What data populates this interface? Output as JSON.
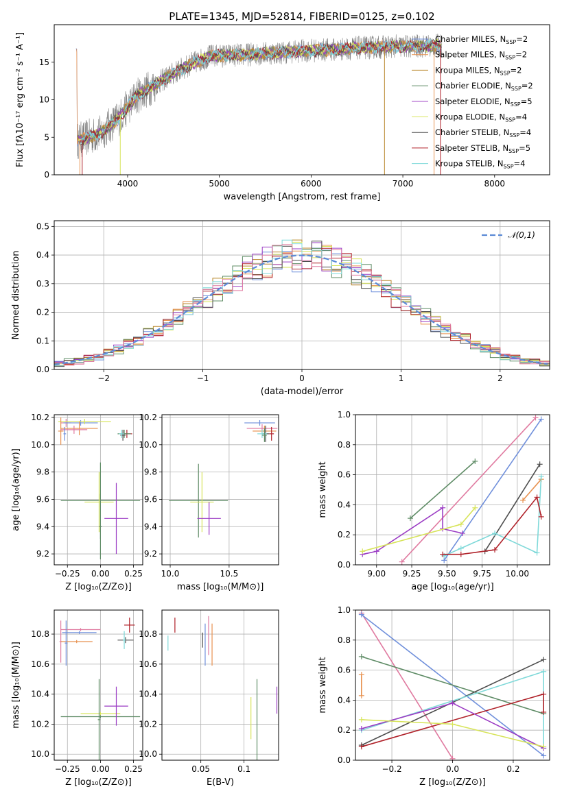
{
  "figure_title": "PLATE=1345, MJD=52814, FIBERID=0125, z=0.102",
  "chart_data": [
    {
      "id": "spectrum",
      "type": "line",
      "title": "PLATE=1345, MJD=52814, FIBERID=0125, z=0.102",
      "xlabel": "wavelength [Angstrom, rest frame]",
      "ylabel": "Flux [fλ10⁻¹⁷ erg cm⁻² s⁻¹ A⁻¹]",
      "xlim": [
        3200,
        8600
      ],
      "ylim": [
        0,
        20
      ],
      "xticks": [
        4000,
        5000,
        6000,
        7000,
        8000
      ],
      "yticks": [
        0,
        5,
        10,
        15
      ],
      "grid": false,
      "legend_position": "upper-right",
      "observed_color": "#808080",
      "model_envelope": {
        "x": [
          3450,
          3700,
          3900,
          4100,
          4300,
          4500,
          4700,
          4900,
          5100,
          5300,
          5500,
          5700,
          5900,
          6100,
          6300,
          6500,
          6700,
          6900,
          7100,
          7300,
          7400
        ],
        "y": [
          4.5,
          5.5,
          7.5,
          10.5,
          12,
          13.5,
          14.8,
          15.8,
          15.9,
          16,
          16.2,
          16.3,
          16.5,
          16.6,
          16.7,
          16.9,
          17,
          17.1,
          17.1,
          17.2,
          17.2
        ]
      },
      "series": [
        {
          "name": "Chabrier MILES, N_SSP=2",
          "color": "#6f8fdb"
        },
        {
          "name": "Salpeter MILES, N_SSP=2",
          "color": "#e7914f"
        },
        {
          "name": "Kroupa MILES, N_SSP=2",
          "color": "#b8862a"
        },
        {
          "name": "Chabrier ELODIE, N_SSP=2",
          "color": "#5f8c66"
        },
        {
          "name": "Salpeter ELODIE, N_SSP=5",
          "color": "#9b3cc4"
        },
        {
          "name": "Kroupa ELODIE, N_SSP=4",
          "color": "#d7e45a"
        },
        {
          "name": "Chabrier STELIB, N_SSP=4",
          "color": "#4e4e4e"
        },
        {
          "name": "Salpeter STELIB, N_SSP=5",
          "color": "#b0222a"
        },
        {
          "name": "Kroupa STELIB, N_SSP=4",
          "color": "#7fd9d9"
        }
      ]
    },
    {
      "id": "residuals",
      "type": "histogram",
      "xlabel": "(data-model)/error",
      "ylabel": "Normed distribution",
      "xlim": [
        -2.5,
        2.5
      ],
      "ylim": [
        0,
        0.52
      ],
      "xticks": [
        -2,
        -1,
        0,
        1,
        2
      ],
      "yticks": [
        0.0,
        0.1,
        0.2,
        0.3,
        0.4,
        0.5
      ],
      "grid": true,
      "legend_position": "upper-right",
      "reference_curve": {
        "name": "𝒩(0,1)",
        "color": "#5b8ad6",
        "mean": 0,
        "sigma": 1
      },
      "bin_width": 0.1,
      "histogram_colors": [
        "#6f8fdb",
        "#e7914f",
        "#b8862a",
        "#5f8c66",
        "#9b3cc4",
        "#d7e45a",
        "#4e4e4e",
        "#b0222a",
        "#7fd9d9",
        "#e07aa0"
      ]
    },
    {
      "id": "age_vs_Z",
      "type": "errorbar",
      "xlabel": "Z [log₁₀(Z/Z⊙)]",
      "ylabel": "age  [log₁₀(age/yr)]",
      "xlim": [
        -0.35,
        0.32
      ],
      "ylim": [
        9.12,
        10.22
      ],
      "xticks": [
        -0.25,
        0.0,
        0.25
      ],
      "yticks": [
        9.2,
        9.4,
        9.6,
        9.8,
        10.0,
        10.2
      ],
      "grid": true,
      "points": [
        {
          "x": -0.26,
          "xerr": 0.04,
          "y": 10.16,
          "yerr": 0.03,
          "color": "#e07aa0"
        },
        {
          "x": -0.15,
          "xerr": 0.13,
          "y": 10.16,
          "yerr": 0.02,
          "color": "#6f8fdb"
        },
        {
          "x": -0.12,
          "xerr": 0.2,
          "y": 10.17,
          "yerr": 0.02,
          "color": "#d7e45a"
        },
        {
          "x": -0.16,
          "xerr": 0.14,
          "y": 10.12,
          "yerr": 0.05,
          "color": "#e7914f"
        },
        {
          "x": -0.3,
          "xerr": 0.02,
          "y": 10.1,
          "yerr": 0.1,
          "color": "#e7914f"
        },
        {
          "x": -0.2,
          "xerr": 0.1,
          "y": 10.11,
          "yerr": 0.03,
          "color": "#e07aa0"
        },
        {
          "x": -0.27,
          "xerr": 0.01,
          "y": 10.08,
          "yerr": 0.05,
          "color": "#6f8fdb"
        },
        {
          "x": 0.2,
          "xerr": 0.04,
          "y": 10.08,
          "yerr": 0.03,
          "color": "#b0222a"
        },
        {
          "x": 0.18,
          "xerr": 0.05,
          "y": 10.08,
          "yerr": 0.03,
          "color": "#5f8c66"
        },
        {
          "x": 0.17,
          "xerr": 0.02,
          "y": 10.07,
          "yerr": 0.04,
          "color": "#4e4e4e"
        },
        {
          "x": 0.16,
          "xerr": 0.02,
          "y": 10.08,
          "yerr": 0.03,
          "color": "#7fd9d9"
        },
        {
          "x": 0.0,
          "xerr": 0.3,
          "y": 9.59,
          "yerr": 0.28,
          "color": "#5f8c66"
        },
        {
          "x": -0.01,
          "xerr": 0.11,
          "y": 9.58,
          "yerr": 0.22,
          "color": "#d7e45a"
        },
        {
          "x": 0.12,
          "xerr": 0.09,
          "y": 9.46,
          "yerr": 0.26,
          "color": "#9b3cc4"
        },
        {
          "x": 0.0,
          "xerr": 0.01,
          "y": 9.4,
          "yerr": 0.24,
          "color": "#5f8c66"
        }
      ]
    },
    {
      "id": "age_vs_mass",
      "type": "errorbar",
      "xlabel": "mass [log₁₀(M/M⊙)]",
      "ylabel": "",
      "xlim": [
        9.93,
        10.92
      ],
      "ylim": [
        9.12,
        10.22
      ],
      "xticks": [
        10.0,
        10.5
      ],
      "yticks": [
        9.2,
        9.4,
        9.6,
        9.8,
        10.0,
        10.2
      ],
      "grid": true,
      "points": [
        {
          "x": 10.76,
          "xerr": 0.13,
          "y": 10.16,
          "yerr": 0.02,
          "color": "#6f8fdb"
        },
        {
          "x": 10.78,
          "xerr": 0.13,
          "y": 10.12,
          "yerr": 0.03,
          "color": "#e07aa0"
        },
        {
          "x": 10.8,
          "xerr": 0.1,
          "y": 10.1,
          "yerr": 0.04,
          "color": "#e7914f"
        },
        {
          "x": 10.86,
          "xerr": 0.02,
          "y": 10.08,
          "yerr": 0.05,
          "color": "#b0222a"
        },
        {
          "x": 10.81,
          "xerr": 0.03,
          "y": 10.08,
          "yerr": 0.06,
          "color": "#4e4e4e"
        },
        {
          "x": 10.78,
          "xerr": 0.04,
          "y": 10.08,
          "yerr": 0.03,
          "color": "#7fd9d9"
        },
        {
          "x": 10.8,
          "xerr": 0.02,
          "y": 10.07,
          "yerr": 0.05,
          "color": "#5f8c66"
        },
        {
          "x": 10.24,
          "xerr": 0.25,
          "y": 9.59,
          "yerr": 0.27,
          "color": "#5f8c66"
        },
        {
          "x": 10.27,
          "xerr": 0.1,
          "y": 9.58,
          "yerr": 0.22,
          "color": "#d7e45a"
        },
        {
          "x": 10.33,
          "xerr": 0.1,
          "y": 9.46,
          "yerr": 0.12,
          "color": "#9b3cc4"
        }
      ]
    },
    {
      "id": "weight_vs_age",
      "type": "line",
      "xlabel": "age  [log₁₀(age/yr)]",
      "ylabel": "mass weight",
      "xlim": [
        8.85,
        10.23
      ],
      "ylim": [
        0,
        1
      ],
      "xticks": [
        9.0,
        9.25,
        9.5,
        9.75,
        10.0
      ],
      "yticks": [
        0.0,
        0.2,
        0.4,
        0.6,
        0.8,
        1.0
      ],
      "grid": true,
      "series": [
        {
          "color": "#e07aa0",
          "x": [
            9.18,
            10.13
          ],
          "y": [
            0.02,
            0.98
          ]
        },
        {
          "color": "#6f8fdb",
          "x": [
            9.48,
            10.17
          ],
          "y": [
            0.03,
            0.97
          ]
        },
        {
          "color": "#5f8c66",
          "x": [
            9.24,
            9.7
          ],
          "y": [
            0.31,
            0.69
          ]
        },
        {
          "color": "#4e4e4e",
          "x": [
            9.77,
            10.16
          ],
          "y": [
            0.09,
            0.67
          ]
        },
        {
          "color": "#e7914f",
          "x": [
            10.04,
            10.17
          ],
          "y": [
            0.43,
            0.57
          ]
        },
        {
          "color": "#9b3cc4",
          "x": [
            8.9,
            9.0,
            9.47,
            9.47,
            9.61
          ],
          "y": [
            0.07,
            0.09,
            0.38,
            0.24,
            0.21
          ]
        },
        {
          "color": "#d7e45a",
          "x": [
            8.9,
            9.6,
            9.7
          ],
          "y": [
            0.09,
            0.27,
            0.38
          ]
        },
        {
          "color": "#7fd9d9",
          "x": [
            9.48,
            9.6,
            9.84,
            10.14,
            10.17
          ],
          "y": [
            0.06,
            0.11,
            0.21,
            0.08,
            0.59
          ]
        },
        {
          "color": "#b0222a",
          "x": [
            9.47,
            9.6,
            9.84,
            10.14,
            10.17
          ],
          "y": [
            0.07,
            0.07,
            0.1,
            0.45,
            0.32
          ]
        }
      ]
    },
    {
      "id": "mass_vs_Z",
      "type": "errorbar",
      "xlabel": "Z [log₁₀(Z/Z⊙)]",
      "ylabel": "mass [log₁₀(M/M⊙)]",
      "xlim": [
        -0.35,
        0.32
      ],
      "ylim": [
        9.96,
        10.96
      ],
      "xticks": [
        -0.25,
        0.0,
        0.25
      ],
      "yticks": [
        10.0,
        10.2,
        10.4,
        10.6,
        10.8
      ],
      "grid": true,
      "points": [
        {
          "x": -0.15,
          "xerr": 0.15,
          "y": 10.83,
          "yerr": 0.01,
          "color": "#e07aa0"
        },
        {
          "x": -0.16,
          "xerr": 0.13,
          "y": 10.81,
          "yerr": 0.01,
          "color": "#6f8fdb"
        },
        {
          "x": -0.3,
          "xerr": 0.01,
          "y": 10.75,
          "yerr": 0.14,
          "color": "#e07aa0"
        },
        {
          "x": -0.18,
          "xerr": 0.12,
          "y": 10.75,
          "yerr": 0.01,
          "color": "#e7914f"
        },
        {
          "x": -0.26,
          "xerr": 0.01,
          "y": 10.74,
          "yerr": 0.15,
          "color": "#6f8fdb"
        },
        {
          "x": 0.22,
          "xerr": 0.04,
          "y": 10.86,
          "yerr": 0.05,
          "color": "#b0222a"
        },
        {
          "x": 0.19,
          "xerr": 0.06,
          "y": 10.76,
          "yerr": 0.02,
          "color": "#4e4e4e"
        },
        {
          "x": 0.18,
          "xerr": 0.01,
          "y": 10.76,
          "yerr": 0.06,
          "color": "#7fd9d9"
        },
        {
          "x": 0.0,
          "xerr": 0.3,
          "y": 10.25,
          "yerr": 0.01,
          "color": "#5f8c66"
        },
        {
          "x": 0.0,
          "xerr": 0.15,
          "y": 10.27,
          "yerr": 0.01,
          "color": "#d7e45a"
        },
        {
          "x": -0.01,
          "xerr": 0.01,
          "y": 10.23,
          "yerr": 0.27,
          "color": "#5f8c66"
        },
        {
          "x": 0.12,
          "xerr": 0.09,
          "y": 10.32,
          "yerr": 0.13,
          "color": "#9b3cc4"
        }
      ]
    },
    {
      "id": "mass_vs_ebv",
      "type": "errorbar",
      "xlabel": "E(B-V)",
      "ylabel": "",
      "xlim": [
        0.005,
        0.14
      ],
      "ylim": [
        9.96,
        10.96
      ],
      "xticks": [
        0.05,
        0.1
      ],
      "yticks": [
        10.0,
        10.2,
        10.4,
        10.6,
        10.8
      ],
      "grid": true,
      "points": [
        {
          "x": 0.012,
          "y": 10.74,
          "yerr": 0.05,
          "color": "#7fd9d9"
        },
        {
          "x": 0.02,
          "y": 10.86,
          "yerr": 0.05,
          "color": "#b0222a"
        },
        {
          "x": 0.052,
          "y": 10.76,
          "yerr": 0.05,
          "color": "#4e4e4e"
        },
        {
          "x": 0.055,
          "y": 10.73,
          "yerr": 0.14,
          "color": "#6f8fdb"
        },
        {
          "x": 0.059,
          "y": 10.79,
          "yerr": 0.13,
          "color": "#e07aa0"
        },
        {
          "x": 0.063,
          "y": 10.73,
          "yerr": 0.14,
          "color": "#e7914f"
        },
        {
          "x": 0.108,
          "y": 10.24,
          "yerr": 0.14,
          "color": "#d7e45a"
        },
        {
          "x": 0.115,
          "y": 10.23,
          "yerr": 0.27,
          "color": "#5f8c66"
        },
        {
          "x": 0.138,
          "y": 10.36,
          "yerr": 0.09,
          "color": "#9b3cc4"
        }
      ]
    },
    {
      "id": "weight_vs_Z",
      "type": "line",
      "xlabel": "Z [log₁₀(Z/Z⊙)]",
      "ylabel": "mass weight",
      "xlim": [
        -0.32,
        0.32
      ],
      "ylim": [
        0,
        1
      ],
      "xticks": [
        -0.2,
        0.0,
        0.2
      ],
      "yticks": [
        0.0,
        0.2,
        0.4,
        0.6,
        0.8,
        1.0
      ],
      "grid": true,
      "series": [
        {
          "color": "#e07aa0",
          "x": [
            -0.3,
            0.0
          ],
          "y": [
            0.98,
            0.01
          ]
        },
        {
          "color": "#6f8fdb",
          "x": [
            -0.3,
            0.3
          ],
          "y": [
            0.97,
            0.03
          ]
        },
        {
          "color": "#5f8c66",
          "x": [
            -0.3,
            0.3
          ],
          "y": [
            0.69,
            0.31
          ]
        },
        {
          "color": "#4e4e4e",
          "x": [
            -0.3,
            0.3
          ],
          "y": [
            0.1,
            0.67
          ]
        },
        {
          "color": "#7fd9d9",
          "x": [
            -0.3,
            0.3,
            0.3
          ],
          "y": [
            0.2,
            0.59,
            0.08
          ]
        },
        {
          "color": "#b0222a",
          "x": [
            -0.3,
            0.3,
            0.3
          ],
          "y": [
            0.09,
            0.44,
            0.32
          ]
        },
        {
          "color": "#9b3cc4",
          "x": [
            -0.3,
            0.0,
            0.3
          ],
          "y": [
            0.21,
            0.38,
            0.08
          ]
        },
        {
          "color": "#d7e45a",
          "x": [
            -0.3,
            0.0,
            0.3
          ],
          "y": [
            0.27,
            0.24,
            0.09
          ]
        },
        {
          "color": "#e7914f",
          "x": [
            -0.3,
            -0.3
          ],
          "y": [
            0.43,
            0.57
          ]
        }
      ]
    }
  ]
}
